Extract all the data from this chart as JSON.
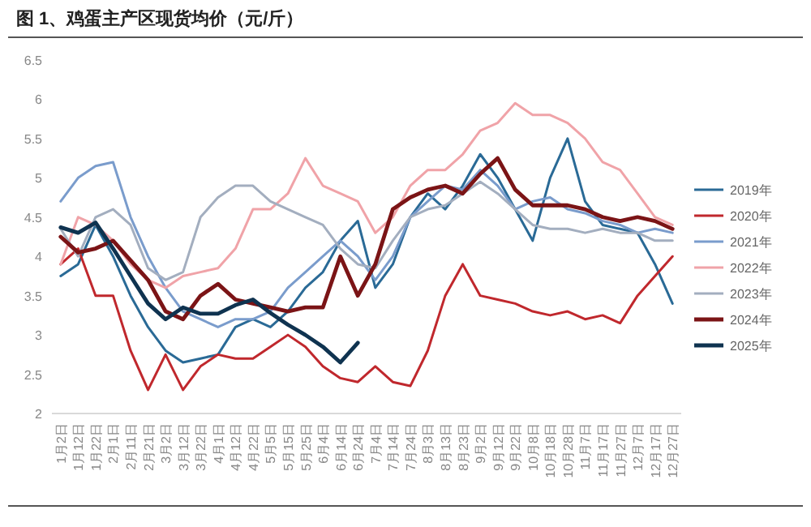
{
  "chart_data": {
    "type": "line",
    "title": "图 1、鸡蛋主产区现货均价（元/斤）",
    "categories": [
      "1月2日",
      "1月12日",
      "1月22日",
      "2月1日",
      "2月11日",
      "2月21日",
      "3月2日",
      "3月12日",
      "3月22日",
      "4月1日",
      "4月12日",
      "4月22日",
      "5月5日",
      "5月15日",
      "5月25日",
      "6月4日",
      "6月14日",
      "6月24日",
      "7月4日",
      "7月14日",
      "7月24日",
      "8月3日",
      "8月13日",
      "8月23日",
      "9月2日",
      "9月12日",
      "9月22日",
      "10月8日",
      "10月18日",
      "10月28日",
      "11月7日",
      "11月17日",
      "11月27日",
      "12月7日",
      "12月17日",
      "12月27日"
    ],
    "ylim": [
      2,
      6.5
    ],
    "yticks": [
      2,
      2.5,
      3,
      3.5,
      4,
      4.5,
      5,
      5.5,
      6,
      6.5
    ],
    "grid": false,
    "legend": "right",
    "line_style": "solid",
    "marker": "none",
    "series": [
      {
        "name": "2019年",
        "color": "#2a6a96",
        "values": [
          3.75,
          3.9,
          4.4,
          4.0,
          3.5,
          3.1,
          2.8,
          2.65,
          2.7,
          2.75,
          3.1,
          3.2,
          3.1,
          3.3,
          3.6,
          3.8,
          4.2,
          4.45,
          3.6,
          3.9,
          4.5,
          4.8,
          4.6,
          4.9,
          5.3,
          5.0,
          4.6,
          4.2,
          5.0,
          5.5,
          4.7,
          4.4,
          4.35,
          4.3,
          3.9,
          3.4
        ]
      },
      {
        "name": "2020年",
        "color": "#c0282d",
        "values": [
          3.9,
          4.1,
          3.5,
          3.5,
          2.8,
          2.3,
          2.75,
          2.3,
          2.6,
          2.75,
          2.7,
          2.7,
          2.85,
          3.0,
          2.85,
          2.6,
          2.45,
          2.4,
          2.6,
          2.4,
          2.35,
          2.8,
          3.5,
          3.9,
          3.5,
          3.45,
          3.4,
          3.3,
          3.25,
          3.3,
          3.2,
          3.25,
          3.15,
          3.5,
          3.75,
          4.0
        ]
      },
      {
        "name": "2021年",
        "color": "#7a9ccc",
        "values": [
          4.7,
          5.0,
          5.15,
          5.2,
          4.5,
          4.0,
          3.6,
          3.3,
          3.2,
          3.1,
          3.2,
          3.2,
          3.3,
          3.6,
          3.8,
          4.0,
          4.2,
          4.0,
          3.7,
          4.0,
          4.5,
          4.7,
          4.9,
          4.85,
          5.1,
          4.9,
          4.6,
          4.7,
          4.75,
          4.6,
          4.55,
          4.45,
          4.4,
          4.3,
          4.35,
          4.3
        ]
      },
      {
        "name": "2022年",
        "color": "#f0a3a8",
        "values": [
          3.9,
          4.5,
          4.4,
          4.2,
          3.9,
          3.7,
          3.6,
          3.75,
          3.8,
          3.85,
          4.1,
          4.6,
          4.6,
          4.8,
          5.25,
          4.9,
          4.8,
          4.7,
          4.3,
          4.5,
          4.9,
          5.1,
          5.1,
          5.3,
          5.6,
          5.7,
          5.95,
          5.8,
          5.8,
          5.7,
          5.5,
          5.2,
          5.1,
          4.8,
          4.5,
          4.4
        ]
      },
      {
        "name": "2023年",
        "color": "#a3aebf",
        "values": [
          4.35,
          4.0,
          4.5,
          4.6,
          4.4,
          3.85,
          3.7,
          3.8,
          4.5,
          4.75,
          4.9,
          4.9,
          4.7,
          4.6,
          4.5,
          4.4,
          4.1,
          3.9,
          3.85,
          4.2,
          4.5,
          4.6,
          4.65,
          4.8,
          4.95,
          4.8,
          4.6,
          4.4,
          4.35,
          4.35,
          4.3,
          4.35,
          4.3,
          4.3,
          4.2,
          4.2
        ]
      },
      {
        "name": "2024年",
        "color": "#7b1416",
        "values": [
          4.25,
          4.05,
          4.1,
          4.2,
          3.95,
          3.7,
          3.3,
          3.2,
          3.5,
          3.65,
          3.45,
          3.4,
          3.35,
          3.3,
          3.35,
          3.35,
          4.0,
          3.5,
          3.9,
          4.6,
          4.75,
          4.85,
          4.9,
          4.8,
          5.05,
          5.25,
          4.85,
          4.65,
          4.65,
          4.65,
          4.6,
          4.5,
          4.45,
          4.5,
          4.45,
          4.35
        ]
      },
      {
        "name": "2025年",
        "color": "#0f3350",
        "values": [
          4.37,
          4.3,
          4.43,
          4.1,
          3.75,
          3.4,
          3.2,
          3.35,
          3.27,
          3.27,
          3.38,
          3.45,
          3.28,
          3.13,
          3.0,
          2.85,
          2.65,
          2.9,
          null,
          null,
          null,
          null,
          null,
          null,
          null,
          null,
          null,
          null,
          null,
          null,
          null,
          null,
          null,
          null,
          null,
          null
        ]
      }
    ]
  }
}
